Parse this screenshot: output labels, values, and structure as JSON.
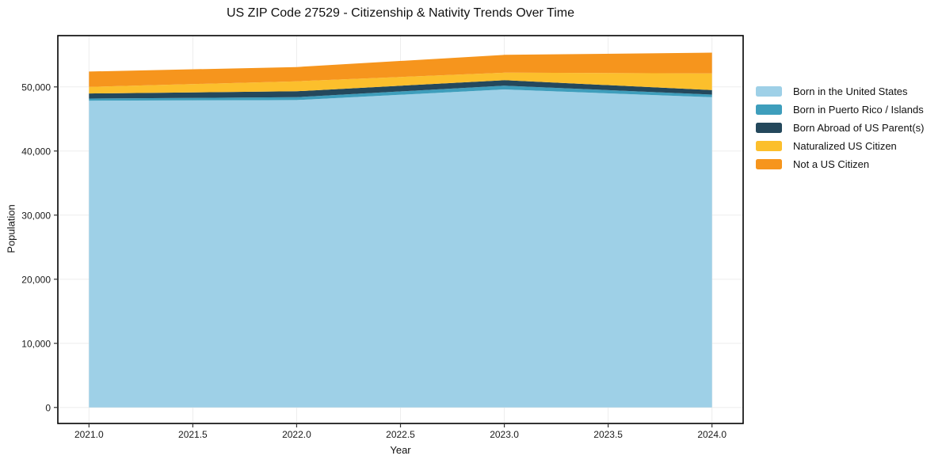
{
  "chart_data": {
    "type": "area",
    "stacked": true,
    "title": "US ZIP Code 27529 - Citizenship & Nativity Trends Over Time",
    "xlabel": "Year",
    "ylabel": "Population",
    "x": [
      2021,
      2022,
      2023,
      2024
    ],
    "series": [
      {
        "name": "Born in the United States",
        "color": "#9ED0E7",
        "values": [
          47850,
          47950,
          49600,
          48400
        ]
      },
      {
        "name": "Born in Puerto Rico / Islands",
        "color": "#3E9EBC",
        "values": [
          330,
          440,
          600,
          400
        ]
      },
      {
        "name": "Born Abroad of US Parent(s)",
        "color": "#24485C",
        "values": [
          800,
          930,
          850,
          700
        ]
      },
      {
        "name": "Naturalized US Citizen",
        "color": "#FCBF2C",
        "values": [
          1020,
          1550,
          1170,
          2600
        ]
      },
      {
        "name": "Not a US Citizen",
        "color": "#F6951D",
        "values": [
          2400,
          2230,
          2780,
          3250
        ]
      }
    ],
    "totals": [
      52400,
      53100,
      55000,
      55350
    ],
    "xlim": [
      2020.85,
      2024.15
    ],
    "ylim": [
      -2500,
      58000
    ],
    "xticks": [
      {
        "v": 2021.0,
        "label": "2021.0"
      },
      {
        "v": 2021.5,
        "label": "2021.5"
      },
      {
        "v": 2022.0,
        "label": "2022.0"
      },
      {
        "v": 2022.5,
        "label": "2022.5"
      },
      {
        "v": 2023.0,
        "label": "2023.0"
      },
      {
        "v": 2023.5,
        "label": "2023.5"
      },
      {
        "v": 2024.0,
        "label": "2024.0"
      }
    ],
    "yticks": [
      {
        "v": 0,
        "label": "0"
      },
      {
        "v": 10000,
        "label": "10,000"
      },
      {
        "v": 20000,
        "label": "20,000"
      },
      {
        "v": 30000,
        "label": "30,000"
      },
      {
        "v": 40000,
        "label": "40,000"
      },
      {
        "v": 50000,
        "label": "50,000"
      }
    ],
    "grid": true,
    "legend_position": "right"
  },
  "styles": {
    "spine_color": "#000000",
    "grid_color": "#ededed",
    "tick_color": "#333333",
    "background": "#ffffff"
  }
}
